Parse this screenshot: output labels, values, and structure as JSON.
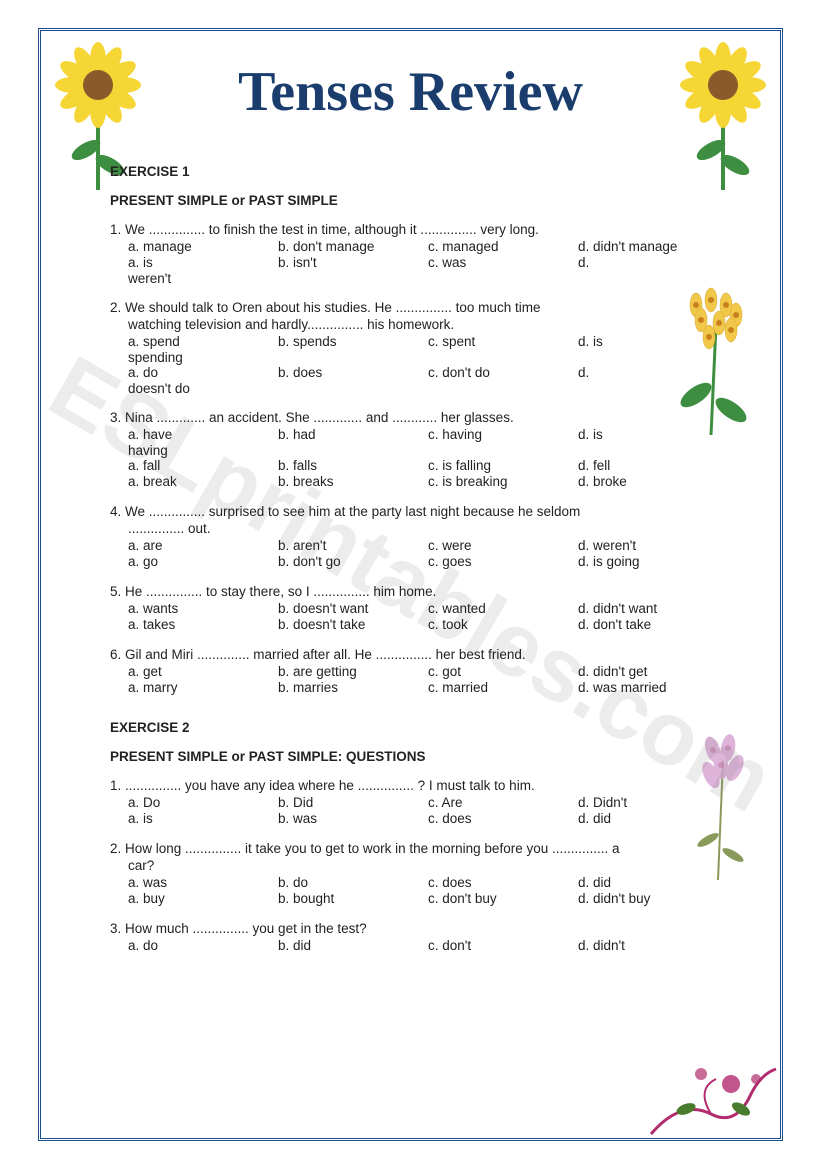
{
  "title": "Tenses Review",
  "watermark": "ESLprintables.com",
  "exercise1": {
    "heading": "EXERCISE 1",
    "subheading": "PRESENT SIMPLE or PAST SIMPLE",
    "questions": [
      {
        "num": "1.",
        "text": "We ............... to finish the test in time, although it ............... very long.",
        "rows": [
          {
            "a": "a. manage",
            "b": "b. don't manage",
            "c": "c. managed",
            "d": "d. didn't manage"
          },
          {
            "a": "a. is",
            "b": "b. isn't",
            "c": "c. was",
            "d": "d.",
            "wrap": "weren't"
          }
        ]
      },
      {
        "num": "2.",
        "text": "We should talk to Oren about his studies. He ............... too much time",
        "text2": "watching television and hardly............... his homework.",
        "rows": [
          {
            "a": "a. spend",
            "b": "b. spends",
            "c": "c. spent",
            "d": "d. is",
            "wrap": "spending"
          },
          {
            "a": "a. do",
            "b": "b. does",
            "c": "c. don't do",
            "d": "d.",
            "wrap": "doesn't do"
          }
        ]
      },
      {
        "num": "3.",
        "text": "Nina ............. an accident. She ............. and ............ her glasses.",
        "rows": [
          {
            "a": "a. have",
            "b": "b. had",
            "c": "c. having",
            "d": "d. is",
            "wrap": "having"
          },
          {
            "a": "a. fall",
            "b": "b. falls",
            "c": "c. is falling",
            "d": "d. fell"
          },
          {
            "a": "a. break",
            "b": "b. breaks",
            "c": "c. is breaking",
            "d": "d. broke"
          }
        ]
      },
      {
        "num": "4.",
        "text": "We ............... surprised to see him at the party last night because he seldom",
        "text2": "............... out.",
        "rows": [
          {
            "a": "a. are",
            "b": "b. aren't",
            "c": "c. were",
            "d": "d. weren't"
          },
          {
            "a": "a. go",
            "b": "b. don't go",
            "c": "c. goes",
            "d": "d. is going"
          }
        ]
      },
      {
        "num": "5.",
        "text": "He ............... to stay there, so I ............... him home.",
        "rows": [
          {
            "a": "a. wants",
            "b": "b. doesn't want",
            "c": "c. wanted",
            "d": "d. didn't want"
          },
          {
            "a": "a. takes",
            "b": "b. doesn't take",
            "c": "c. took",
            "d": "d. don't take"
          }
        ]
      },
      {
        "num": "6.",
        "text": "Gil and Miri .............. married after all. He ............... her best friend.",
        "rows": [
          {
            "a": "a. get",
            "b": "b. are getting",
            "c": "c. got",
            "d": "d. didn't get"
          },
          {
            "a": "a. marry",
            "b": "b. marries",
            "c": "c. married",
            "d": "d. was married"
          }
        ]
      }
    ]
  },
  "exercise2": {
    "heading": "EXERCISE 2",
    "subheading": "PRESENT SIMPLE or PAST SIMPLE: QUESTIONS",
    "questions": [
      {
        "num": "1.",
        "text": "............... you have any idea where he ............... ? I must talk to him.",
        "rows": [
          {
            "a": "a. Do",
            "b": "b. Did",
            "c": "c. Are",
            "d": "d. Didn't"
          },
          {
            "a": "a. is",
            "b": "b. was",
            "c": "c. does",
            "d": "d. did"
          }
        ]
      },
      {
        "num": "2.",
        "text": "How long ............... it take you to get to work in the morning before you ............... a",
        "text2": "car?",
        "rows": [
          {
            "a": "a. was",
            "b": "b. do",
            "c": "c. does",
            "d": "d. did"
          },
          {
            "a": "a. buy",
            "b": "b. bought",
            "c": "c. don't buy",
            "d": "d. didn't buy"
          }
        ]
      },
      {
        "num": "3.",
        "text": "How much ............... you get in the test?",
        "rows": [
          {
            "a": "a. do",
            "b": "b. did",
            "c": "c. don't",
            "d": "d. didn't"
          }
        ]
      }
    ]
  },
  "colors": {
    "title": "#1a3d6e",
    "border": "#1a4d8f",
    "text": "#222222",
    "watermark": "rgba(128,128,128,0.15)",
    "sunflower_petal": "#f5d635",
    "sunflower_center": "#8b5a2b",
    "stem": "#3e8e41",
    "yellow_flower": "#f2c84b",
    "pink_flower": "#d9a8d4",
    "swirl": "#b02c6e"
  }
}
